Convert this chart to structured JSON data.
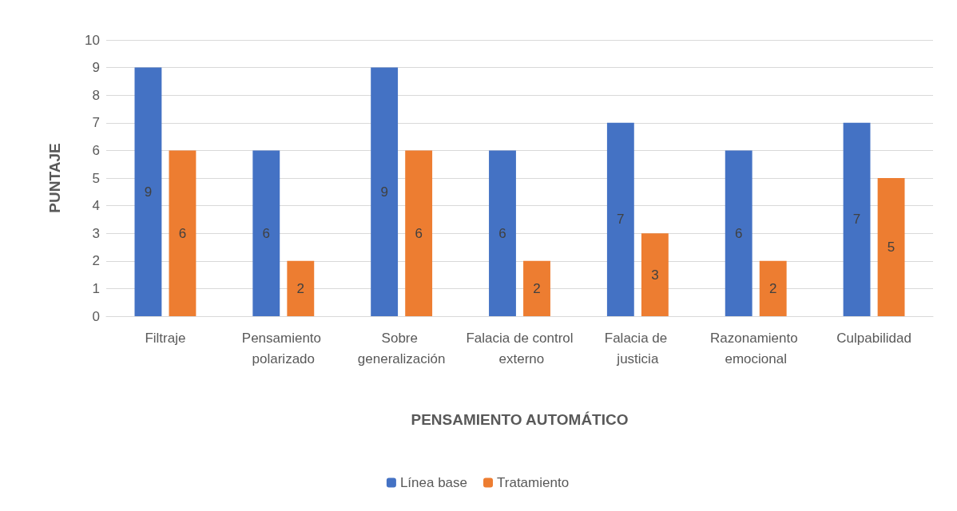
{
  "chart_data": {
    "type": "bar",
    "xlabel": "PENSAMIENTO AUTOMÁTICO",
    "ylabel": "PUNTAJE",
    "categories": [
      "Filtraje",
      "Pensamiento polarizado",
      "Sobre generalización",
      "Falacia de control externo",
      "Falacia de justicia",
      "Razonamiento emocional",
      "Culpabilidad"
    ],
    "series": [
      {
        "name": "Línea base",
        "color": "#4472c4",
        "values": [
          9,
          6,
          9,
          6,
          7,
          6,
          7
        ]
      },
      {
        "name": "Tratamiento",
        "color": "#ed7d31",
        "values": [
          6,
          2,
          6,
          2,
          3,
          2,
          5
        ]
      }
    ],
    "ylim": [
      0,
      10
    ],
    "yticks": [
      0,
      1,
      2,
      3,
      4,
      5,
      6,
      7,
      8,
      9,
      10
    ],
    "grid": "y",
    "legend": "bottom",
    "data_labels": true
  }
}
